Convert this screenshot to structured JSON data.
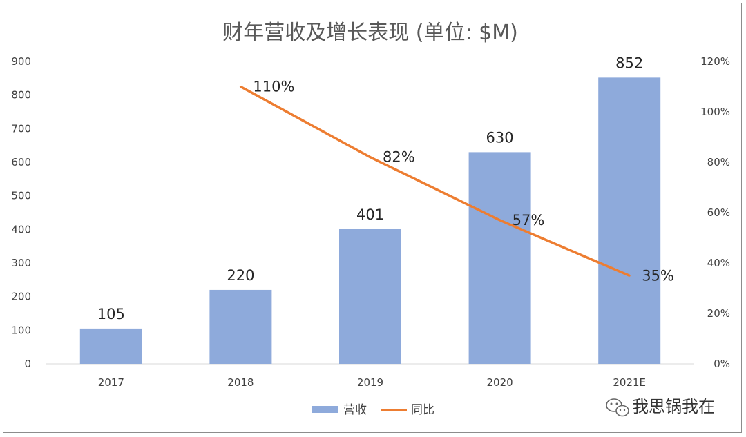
{
  "chart_data": {
    "type": "bar",
    "title": "财年营收及增长表现 (单位: $M)",
    "categories": [
      "2017",
      "2018",
      "2019",
      "2020",
      "2021E"
    ],
    "series": [
      {
        "name": "营收",
        "type": "bar",
        "axis": "left",
        "color": "#8eaadb",
        "values": [
          105,
          220,
          401,
          630,
          852
        ],
        "labels": [
          "105",
          "220",
          "401",
          "630",
          "852"
        ]
      },
      {
        "name": "同比",
        "type": "line",
        "axis": "right",
        "color": "#ed7d31",
        "values": [
          null,
          1.1,
          0.82,
          0.57,
          0.35
        ],
        "labels": [
          "",
          "110%",
          "82%",
          "57%",
          "35%"
        ]
      }
    ],
    "y_left": {
      "min": 0,
      "max": 900,
      "ticks": [
        "0",
        "100",
        "200",
        "300",
        "400",
        "500",
        "600",
        "700",
        "800",
        "900"
      ]
    },
    "y_right": {
      "min": 0,
      "max": 1.2,
      "ticks": [
        "0%",
        "20%",
        "40%",
        "60%",
        "80%",
        "100%",
        "120%"
      ]
    },
    "grid": false,
    "legend": "bottom-center"
  },
  "watermark": {
    "text": "我思锅我在",
    "icon": "wechat-icon"
  }
}
